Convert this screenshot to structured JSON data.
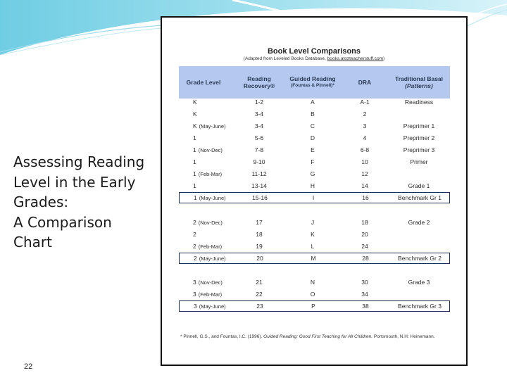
{
  "slide": {
    "title_lines": [
      "Assessing Reading",
      "Level in the Early",
      "Grades:",
      "A Comparison",
      "Chart"
    ],
    "page_number": "22"
  },
  "doc": {
    "title": "Book Level Comparisons",
    "subtitle_prefix": "(Adapted from Leveled Books Database,",
    "subtitle_link": "books.atozteacherstuff.com",
    "subtitle_suffix": ")",
    "headers": {
      "grade": "Grade Level",
      "rr": "Reading Recovery®",
      "gr": "Guided Reading",
      "gr_sub": "(Fountas & Pinnell)*",
      "dra": "DRA",
      "basal": "Traditional Basal",
      "basal_sub": "(Patterns)"
    },
    "rows": [
      {
        "grade": "K",
        "sub": "",
        "rr": "1-2",
        "gr": "A",
        "dra": "A-1",
        "basal": "Readiness",
        "boxed": false
      },
      {
        "grade": "K",
        "sub": "",
        "rr": "3-4",
        "gr": "B",
        "dra": "2",
        "basal": "",
        "boxed": false
      },
      {
        "grade": "K",
        "sub": "(May-June)",
        "rr": "3-4",
        "gr": "C",
        "dra": "3",
        "basal": "Preprimer 1",
        "boxed": false
      },
      {
        "grade": "1",
        "sub": "",
        "rr": "5-6",
        "gr": "D",
        "dra": "4",
        "basal": "Preprimer 2",
        "boxed": false
      },
      {
        "grade": "1",
        "sub": "(Nov-Dec)",
        "rr": "7-8",
        "gr": "E",
        "dra": "6-8",
        "basal": "Preprimer 3",
        "boxed": false
      },
      {
        "grade": "1",
        "sub": "",
        "rr": "9-10",
        "gr": "F",
        "dra": "10",
        "basal": "Primer",
        "boxed": false
      },
      {
        "grade": "1",
        "sub": "(Feb-Mar)",
        "rr": "11-12",
        "gr": "G",
        "dra": "12",
        "basal": "",
        "boxed": false
      },
      {
        "grade": "1",
        "sub": "",
        "rr": "13-14",
        "gr": "H",
        "dra": "14",
        "basal": "Grade 1",
        "boxed": false
      },
      {
        "grade": "1",
        "sub": "(May-June)",
        "rr": "15-16",
        "gr": "I",
        "dra": "16",
        "basal": "Benchmark Gr 1",
        "boxed": true
      },
      {
        "grade": "2",
        "sub": "(Nov-Dec)",
        "rr": "17",
        "gr": "J",
        "dra": "18",
        "basal": "Grade 2",
        "boxed": false
      },
      {
        "grade": "2",
        "sub": "",
        "rr": "18",
        "gr": "K",
        "dra": "20",
        "basal": "",
        "boxed": false
      },
      {
        "grade": "2",
        "sub": "(Feb-Mar)",
        "rr": "19",
        "gr": "L",
        "dra": "24",
        "basal": "",
        "boxed": false
      },
      {
        "grade": "2",
        "sub": "(May-June)",
        "rr": "20",
        "gr": "M",
        "dra": "28",
        "basal": "Benchmark Gr 2",
        "boxed": true
      },
      {
        "grade": "3",
        "sub": "(Nov-Dec)",
        "rr": "21",
        "gr": "N",
        "dra": "30",
        "basal": "Grade 3",
        "boxed": false
      },
      {
        "grade": "3",
        "sub": "(Feb-Mar)",
        "rr": "22",
        "gr": "O",
        "dra": "34",
        "basal": "",
        "boxed": false
      },
      {
        "grade": "3",
        "sub": "(May-June)",
        "rr": "23",
        "gr": "P",
        "dra": "38",
        "basal": "Benchmark Gr 3",
        "boxed": true
      }
    ],
    "footnote_authors": "* Pinnell, G.S., and Fountas, I.C. (1996).",
    "footnote_book": "Guided Reading: Good First Teaching for All Children.",
    "footnote_rest": "Portsmouth, N.H: Heinemann."
  },
  "colors": {
    "header_fill": "#b5c8f0",
    "box_border": "#1c2f4d",
    "deco_teal": "#7fd3e6"
  }
}
